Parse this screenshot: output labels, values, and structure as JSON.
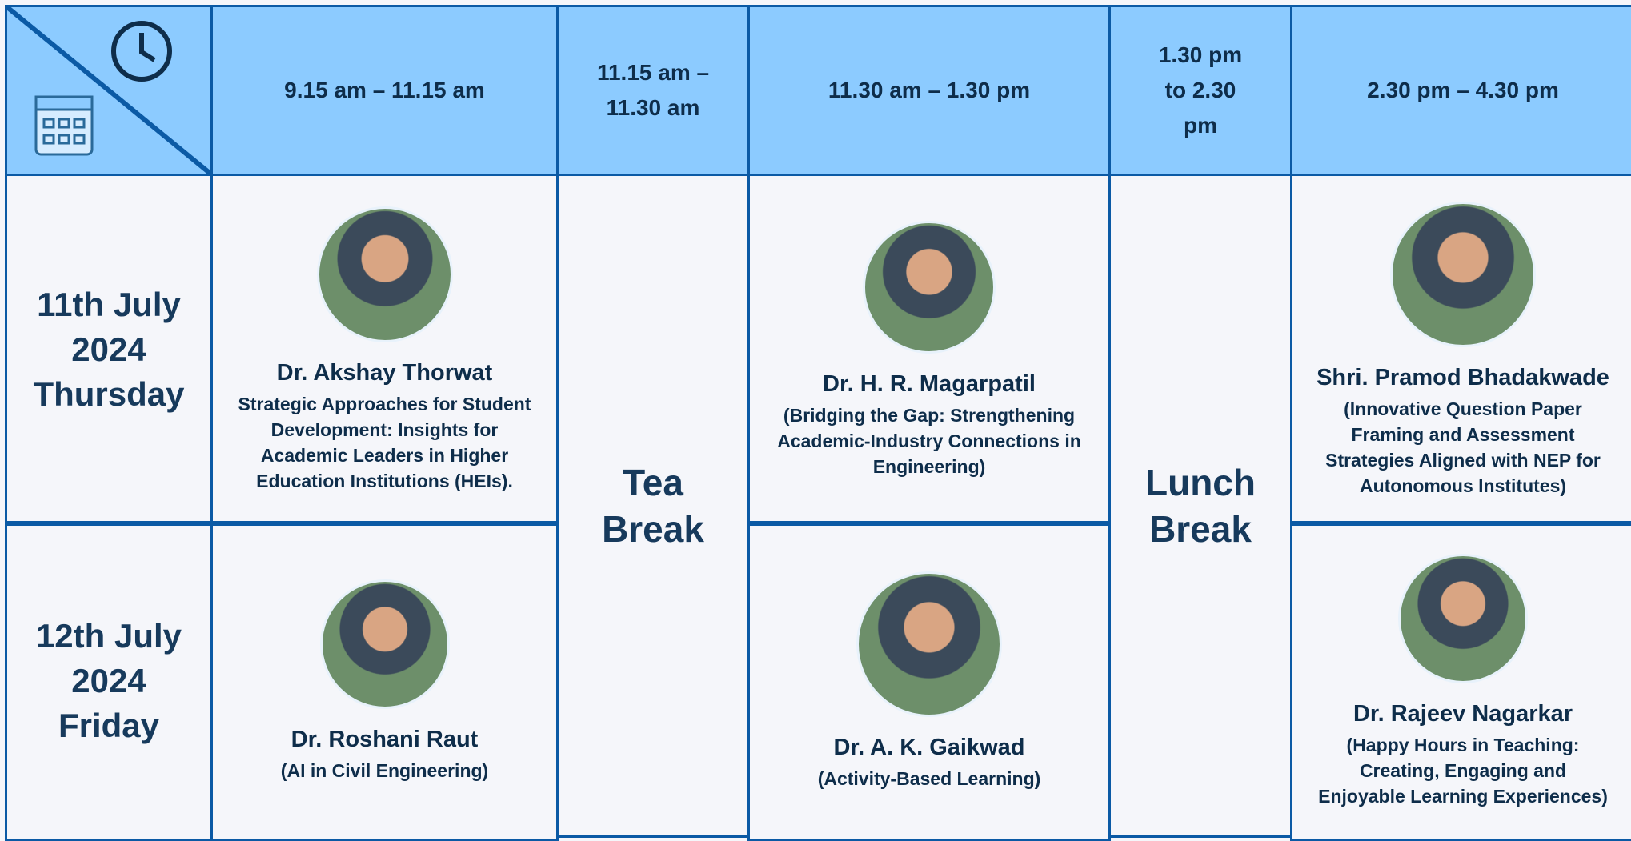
{
  "header": {
    "times": [
      "9.15 am – 11.15 am",
      "11.15 am – 11.30 am",
      "11.30 am – 1.30 pm",
      "1.30 pm to 2.30 pm",
      "2.30 pm – 4.30 pm"
    ]
  },
  "days": [
    {
      "lines": [
        "11th July",
        "2024",
        "Thursday"
      ],
      "sessions": [
        {
          "name": "Dr. Akshay Thorwat",
          "topic": "Strategic Approaches for Student Development: Insights for Academic Leaders in Higher Education Institutions (HEIs)."
        },
        {
          "name": "Dr. H. R. Magarpatil",
          "topic": "(Bridging the Gap: Strengthening Academic-Industry Connections in Engineering)"
        },
        {
          "name": "Shri. Pramod Bhadakwade",
          "topic": "(Innovative Question Paper Framing and Assessment Strategies Aligned with NEP for Autonomous Institutes)"
        }
      ]
    },
    {
      "lines": [
        "12th July",
        "2024",
        "Friday"
      ],
      "sessions": [
        {
          "name": "Dr. Roshani Raut",
          "topic": "(AI in Civil Engineering)"
        },
        {
          "name": "Dr. A. K. Gaikwad",
          "topic": "(Activity-Based Learning)"
        },
        {
          "name": "Dr. Rajeev Nagarkar",
          "topic": "(Happy Hours in Teaching: Creating, Engaging and Enjoyable Learning Experiences)"
        }
      ]
    }
  ],
  "breaks": [
    "Tea Break",
    "Lunch Break"
  ]
}
